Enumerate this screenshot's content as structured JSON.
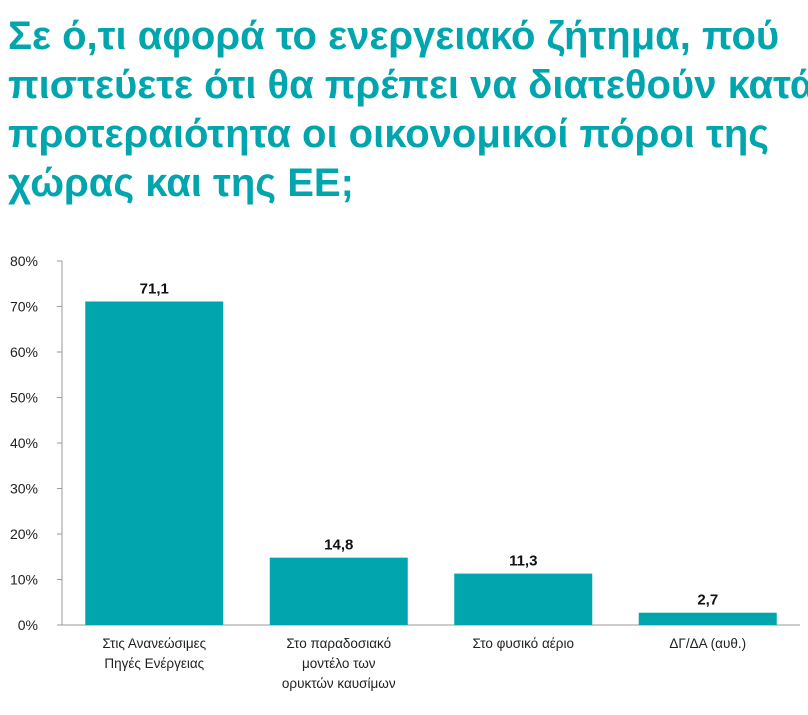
{
  "title_lines": [
    "Σε ό,τι αφορά το ενεργειακό ζήτημα, πού",
    "πιστεύετε ότι θα πρέπει να διατεθούν κατά",
    "προτεραιότητα οι οικονομικοί πόροι της",
    "χώρας και της ΕΕ;"
  ],
  "colors": {
    "title": "#00a5ad",
    "bar": "#00a5ad",
    "axis": "#9a9a9a"
  },
  "chart_data": {
    "type": "bar",
    "title": "Σε ό,τι αφορά το ενεργειακό ζήτημα, πού πιστεύετε ότι θα πρέπει να διατεθούν κατά προτεραιότητα οι οικονομικοί πόροι της χώρας και της ΕΕ;",
    "categories": [
      [
        "Στις Ανανεώσιμες",
        "Πηγές Ενέργειας"
      ],
      [
        "Στο παραδοσιακό",
        "μοντέλο των",
        "ορυκτών καυσίμων"
      ],
      [
        "Στο φυσικό αέριο"
      ],
      [
        "ΔΓ/ΔΑ (αυθ.)"
      ]
    ],
    "values": [
      71.1,
      14.8,
      11.3,
      2.7
    ],
    "value_labels": [
      "71,1",
      "14,8",
      "11,3",
      "2,7"
    ],
    "ylim": [
      0,
      80
    ],
    "yticks": [
      0,
      10,
      20,
      30,
      40,
      50,
      60,
      70,
      80
    ],
    "ytick_labels": [
      "0%",
      "10%",
      "20%",
      "30%",
      "40%",
      "50%",
      "60%",
      "70%",
      "80%"
    ],
    "xlabel": "",
    "ylabel": "",
    "grid": false,
    "legend": "none"
  }
}
